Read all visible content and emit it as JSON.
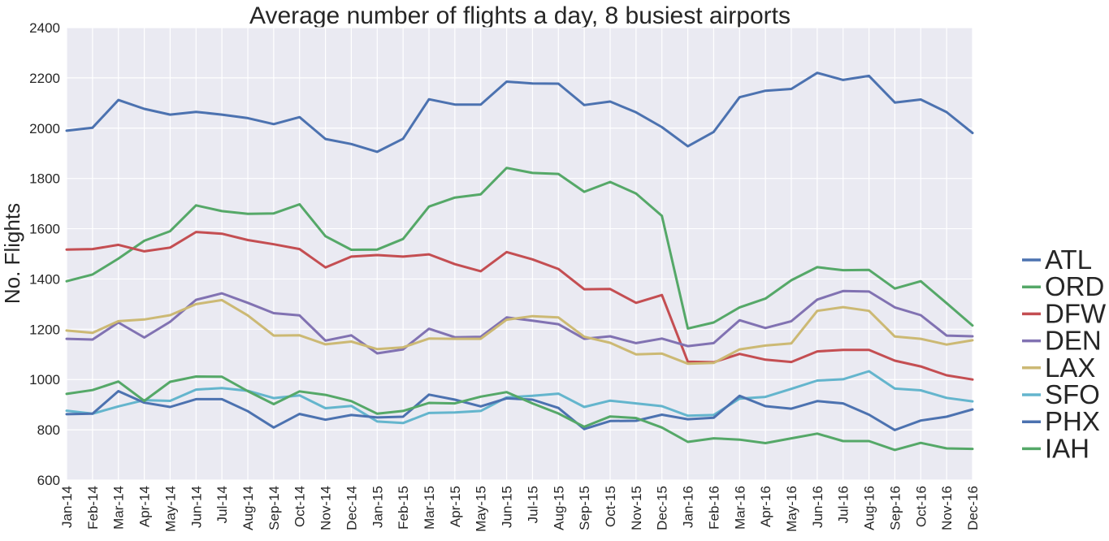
{
  "chart_data": {
    "type": "line",
    "title": "Average number of flights a day, 8 busiest airports",
    "xlabel": "",
    "ylabel": "No. Flights",
    "ylim": [
      600,
      2400
    ],
    "yticks": [
      600,
      800,
      1000,
      1200,
      1400,
      1600,
      1800,
      2000,
      2200,
      2400
    ],
    "grid": true,
    "legend_position": "right",
    "categories": [
      "Jan-14",
      "Feb-14",
      "Mar-14",
      "Apr-14",
      "May-14",
      "Jun-14",
      "Jul-14",
      "Aug-14",
      "Sep-14",
      "Oct-14",
      "Nov-14",
      "Dec-14",
      "Jan-15",
      "Feb-15",
      "Mar-15",
      "Apr-15",
      "May-15",
      "Jun-15",
      "Jul-15",
      "Aug-15",
      "Sep-15",
      "Oct-15",
      "Nov-15",
      "Dec-15",
      "Jan-16",
      "Feb-16",
      "Mar-16",
      "Apr-16",
      "May-16",
      "Jun-16",
      "Jul-16",
      "Aug-16",
      "Sep-16",
      "Oct-16",
      "Nov-16",
      "Dec-16"
    ],
    "series": [
      {
        "name": "ATL",
        "color": "#4C72B0",
        "values": [
          1990,
          2002,
          2112,
          2077,
          2054,
          2065,
          2054,
          2040,
          2016,
          2044,
          1957,
          1937,
          1906,
          1958,
          2115,
          2094,
          2094,
          2185,
          2178,
          2177,
          2092,
          2106,
          2063,
          2004,
          1928,
          1985,
          2123,
          2149,
          2156,
          2220,
          2192,
          2208,
          2102,
          2114,
          2064,
          1981
        ]
      },
      {
        "name": "ORD",
        "color": "#55A868",
        "values": [
          1391,
          1418,
          1481,
          1552,
          1590,
          1693,
          1670,
          1659,
          1661,
          1697,
          1570,
          1516,
          1517,
          1559,
          1688,
          1724,
          1737,
          1842,
          1822,
          1818,
          1747,
          1786,
          1740,
          1651,
          1203,
          1227,
          1287,
          1322,
          1395,
          1447,
          1435,
          1436,
          1362,
          1391,
          1304,
          1215
        ]
      },
      {
        "name": "DFW",
        "color": "#C44E52",
        "values": [
          1517,
          1519,
          1536,
          1510,
          1525,
          1587,
          1580,
          1555,
          1538,
          1519,
          1446,
          1489,
          1495,
          1489,
          1498,
          1459,
          1431,
          1507,
          1478,
          1440,
          1359,
          1360,
          1305,
          1336,
          1071,
          1069,
          1102,
          1079,
          1070,
          1112,
          1118,
          1118,
          1075,
          1052,
          1017,
          1000
        ]
      },
      {
        "name": "DEN",
        "color": "#8172B2",
        "values": [
          1162,
          1159,
          1227,
          1167,
          1230,
          1317,
          1343,
          1305,
          1264,
          1255,
          1155,
          1176,
          1104,
          1120,
          1202,
          1168,
          1170,
          1247,
          1234,
          1220,
          1162,
          1172,
          1145,
          1163,
          1133,
          1145,
          1236,
          1205,
          1232,
          1318,
          1352,
          1350,
          1287,
          1256,
          1175,
          1172
        ]
      },
      {
        "name": "LAX",
        "color": "#CCB974",
        "values": [
          1195,
          1186,
          1232,
          1239,
          1256,
          1300,
          1316,
          1255,
          1175,
          1176,
          1140,
          1151,
          1121,
          1128,
          1163,
          1162,
          1162,
          1238,
          1252,
          1247,
          1170,
          1146,
          1100,
          1103,
          1063,
          1066,
          1120,
          1135,
          1144,
          1273,
          1288,
          1273,
          1171,
          1162,
          1139,
          1156
        ]
      },
      {
        "name": "SFO",
        "color": "#64B5CD",
        "values": [
          876,
          864,
          893,
          918,
          915,
          960,
          966,
          955,
          926,
          937,
          886,
          895,
          833,
          827,
          867,
          869,
          875,
          929,
          935,
          944,
          891,
          916,
          905,
          894,
          856,
          859,
          924,
          931,
          963,
          996,
          1001,
          1033,
          964,
          957,
          927,
          913
        ]
      },
      {
        "name": "PHX",
        "color": "#4C72B0",
        "values": [
          862,
          864,
          954,
          908,
          891,
          922,
          922,
          874,
          809,
          863,
          840,
          859,
          849,
          852,
          940,
          920,
          893,
          925,
          920,
          887,
          803,
          835,
          836,
          860,
          842,
          848,
          935,
          894,
          884,
          914,
          905,
          860,
          799,
          837,
          852,
          881
        ]
      },
      {
        "name": "IAH",
        "color": "#55A868",
        "values": [
          943,
          958,
          992,
          915,
          991,
          1012,
          1011,
          954,
          902,
          953,
          939,
          914,
          864,
          875,
          907,
          905,
          932,
          950,
          905,
          865,
          812,
          853,
          847,
          809,
          752,
          766,
          761,
          747,
          766,
          785,
          755,
          755,
          720,
          748,
          726,
          724
        ]
      }
    ]
  }
}
